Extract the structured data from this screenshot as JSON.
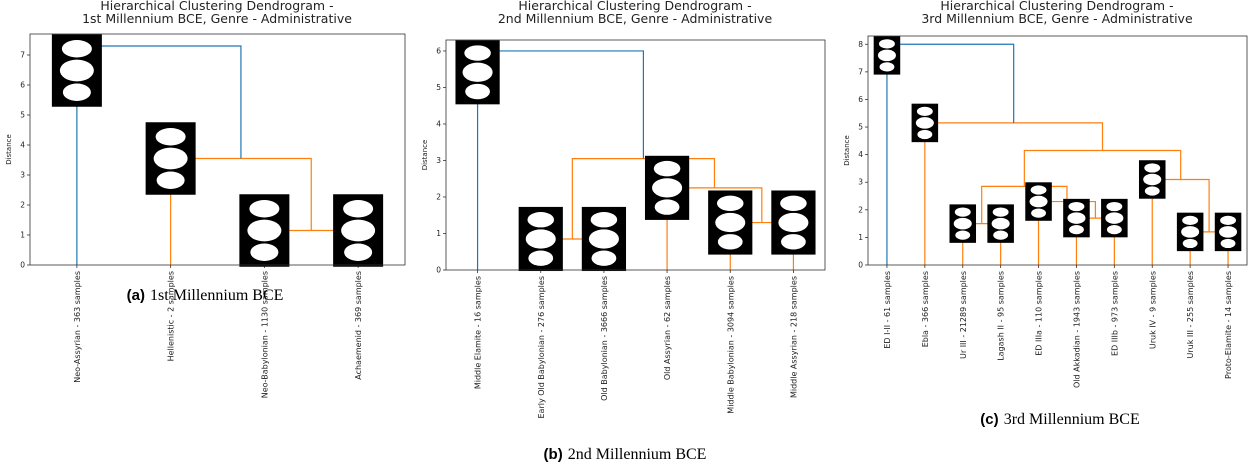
{
  "chart_data": [
    {
      "type": "dendrogram",
      "title": [
        "Hierarchical Clustering Dendrogram -",
        "1st Millennium BCE, Genre - Administrative"
      ],
      "ylabel": "Distance",
      "caption_label": "(a)",
      "caption": "1st Millennium BCE",
      "ylim": [
        0,
        7.7
      ],
      "yticks": [
        0,
        1,
        2,
        3,
        4,
        5,
        6,
        7
      ],
      "leaves": [
        "Neo-Assyrian - 363 samples",
        "Hellenistic - 2 samples",
        "Neo-Babylonian - 1130 samples",
        "Achaemenid - 369 samples"
      ],
      "links": [
        {
          "children": [
            2,
            3
          ],
          "height": 1.15,
          "color": "#ff7f0e"
        },
        {
          "children": [
            1,
            4
          ],
          "height": 3.55,
          "color": "#ff7f0e"
        },
        {
          "children": [
            0,
            5
          ],
          "height": 7.3,
          "color": "#1f77b4"
        }
      ]
    },
    {
      "type": "dendrogram",
      "title": [
        "Hierarchical Clustering Dendrogram -",
        "2nd Millennium BCE, Genre - Administrative"
      ],
      "ylabel": "Distance",
      "caption_label": "(b)",
      "caption": "2nd Millennium BCE",
      "ylim": [
        0,
        6.3
      ],
      "yticks": [
        0,
        1,
        2,
        3,
        4,
        5,
        6
      ],
      "leaves": [
        "Middle Elamite - 16 samples",
        "Early Old Babylonian - 276 samples",
        "Old Babylonian - 3666 samples",
        "Old Assyrian - 62 samples",
        "Middle Babylonian - 3094 samples",
        "Middle Assyrian - 218 samples"
      ],
      "links": [
        {
          "children": [
            1,
            2
          ],
          "height": 0.85,
          "color": "#ff7f0e"
        },
        {
          "children": [
            4,
            5
          ],
          "height": 1.3,
          "color": "#ff7f0e"
        },
        {
          "children": [
            3,
            7
          ],
          "height": 2.25,
          "color": "#ff7f0e"
        },
        {
          "children": [
            6,
            8
          ],
          "height": 3.05,
          "color": "#ff7f0e"
        },
        {
          "children": [
            0,
            9
          ],
          "height": 6.0,
          "color": "#1f77b4"
        }
      ]
    },
    {
      "type": "dendrogram",
      "title": [
        "Hierarchical Clustering Dendrogram -",
        "3rd Millennium BCE, Genre - Administrative"
      ],
      "ylabel": "Distance",
      "caption_label": "(c)",
      "caption": "3rd Millennium BCE",
      "ylim": [
        0,
        8.3
      ],
      "yticks": [
        0,
        1,
        2,
        3,
        4,
        5,
        6,
        7,
        8
      ],
      "leaves": [
        "ED I-II - 61 samples",
        "Ebla - 366 samples",
        "Ur III - 21289 samples",
        "Lagash II - 95 samples",
        "ED IIIa - 110 samples",
        "Old Akkadian - 1943 samples",
        "ED IIIb - 973 samples",
        "Uruk IV - 9 samples",
        "Uruk III - 255 samples",
        "Proto-Elamite - 14 samples"
      ],
      "links": [
        {
          "children": [
            2,
            3
          ],
          "height": 1.5,
          "color": "#ff7f0e"
        },
        {
          "children": [
            5,
            6
          ],
          "height": 1.7,
          "color": "#ff7f0e"
        },
        {
          "children": [
            4,
            11
          ],
          "height": 2.3,
          "color": "#ff7f0e"
        },
        {
          "children": [
            10,
            12
          ],
          "height": 2.85,
          "color": "#ff7f0e"
        },
        {
          "children": [
            8,
            9
          ],
          "height": 1.2,
          "color": "#ff7f0e"
        },
        {
          "children": [
            7,
            14
          ],
          "height": 3.1,
          "color": "#ff7f0e"
        },
        {
          "children": [
            13,
            15
          ],
          "height": 4.15,
          "color": "#ff7f0e"
        },
        {
          "children": [
            1,
            16
          ],
          "height": 5.15,
          "color": "#ff7f0e"
        },
        {
          "children": [
            0,
            17
          ],
          "height": 8.0,
          "color": "#1f77b4"
        }
      ]
    }
  ]
}
